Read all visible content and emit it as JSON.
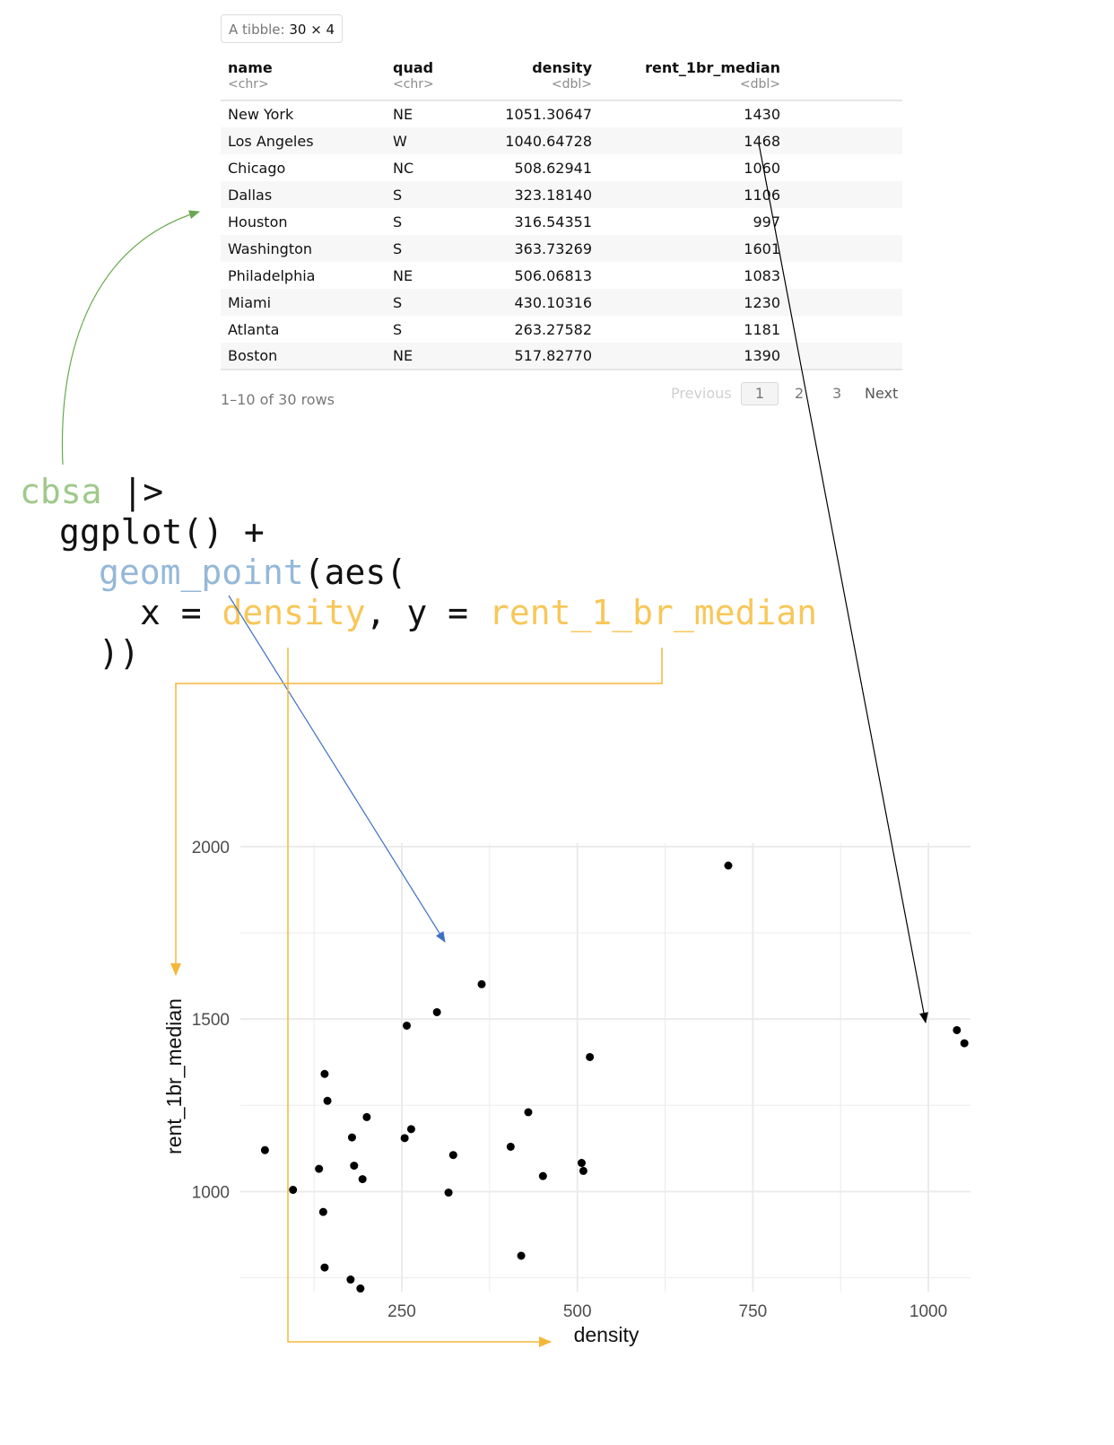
{
  "tibble": {
    "label": "A tibble:",
    "dims": "30 × 4",
    "columns": [
      {
        "name": "name",
        "type": "<chr>"
      },
      {
        "name": "quad",
        "type": "<chr>"
      },
      {
        "name": "density",
        "type": "<dbl>"
      },
      {
        "name": "rent_1br_median",
        "type": "<dbl>"
      }
    ],
    "rows": [
      [
        "New York",
        "NE",
        "1051.30647",
        "1430"
      ],
      [
        "Los Angeles",
        "W",
        "1040.64728",
        "1468"
      ],
      [
        "Chicago",
        "NC",
        "508.62941",
        "1060"
      ],
      [
        "Dallas",
        "S",
        "323.18140",
        "1106"
      ],
      [
        "Houston",
        "S",
        "316.54351",
        "997"
      ],
      [
        "Washington",
        "S",
        "363.73269",
        "1601"
      ],
      [
        "Philadelphia",
        "NE",
        "506.06813",
        "1083"
      ],
      [
        "Miami",
        "S",
        "430.10316",
        "1230"
      ],
      [
        "Atlanta",
        "S",
        "263.27582",
        "1181"
      ],
      [
        "Boston",
        "NE",
        "517.82770",
        "1390"
      ]
    ],
    "rows_info": "1–10 of 30 rows",
    "pagination": {
      "previous": "Previous",
      "pages": [
        "1",
        "2",
        "3"
      ],
      "next": "Next",
      "current": "1"
    }
  },
  "code": {
    "line1_obj": "cbsa",
    "line1_pipe": " |>",
    "line2": "ggplot() +",
    "line3_fn": "geom_point",
    "line3_rest": "(aes(",
    "line4_x": "x = ",
    "line4_xvar": "density",
    "line4_sep": ", y = ",
    "line4_yvar": "rent_1_br_median",
    "line5": "))"
  },
  "colors": {
    "green": "#6aa84f",
    "blue": "#3f6fc1",
    "orange": "#f4b73a",
    "black": "#000000",
    "grid": "#ebebeb"
  },
  "chart_data": {
    "type": "scatter",
    "xlabel": "density",
    "ylabel": "rent_1br_median",
    "xlim": [
      20,
      1060
    ],
    "ylim": [
      710,
      2010
    ],
    "x_ticks": [
      250,
      500,
      750,
      1000
    ],
    "y_ticks": [
      1000,
      1500,
      2000
    ],
    "grid": true,
    "points": [
      {
        "x": 715,
        "y": 1945
      },
      {
        "x": 363.7,
        "y": 1601
      },
      {
        "x": 300,
        "y": 1520
      },
      {
        "x": 257,
        "y": 1481
      },
      {
        "x": 1040.6,
        "y": 1468
      },
      {
        "x": 1051.3,
        "y": 1430
      },
      {
        "x": 517.8,
        "y": 1390
      },
      {
        "x": 140,
        "y": 1341
      },
      {
        "x": 144,
        "y": 1263
      },
      {
        "x": 430.1,
        "y": 1230
      },
      {
        "x": 200,
        "y": 1216
      },
      {
        "x": 263.3,
        "y": 1181
      },
      {
        "x": 179,
        "y": 1157
      },
      {
        "x": 254,
        "y": 1155
      },
      {
        "x": 405,
        "y": 1130
      },
      {
        "x": 55,
        "y": 1120
      },
      {
        "x": 323.2,
        "y": 1106
      },
      {
        "x": 506.1,
        "y": 1083
      },
      {
        "x": 182,
        "y": 1075
      },
      {
        "x": 132,
        "y": 1066
      },
      {
        "x": 508.6,
        "y": 1060
      },
      {
        "x": 451,
        "y": 1045
      },
      {
        "x": 194,
        "y": 1036
      },
      {
        "x": 95,
        "y": 1005
      },
      {
        "x": 316.5,
        "y": 997
      },
      {
        "x": 138,
        "y": 941
      },
      {
        "x": 140,
        "y": 780
      },
      {
        "x": 420,
        "y": 814
      },
      {
        "x": 177,
        "y": 745
      },
      {
        "x": 191,
        "y": 719
      }
    ]
  }
}
